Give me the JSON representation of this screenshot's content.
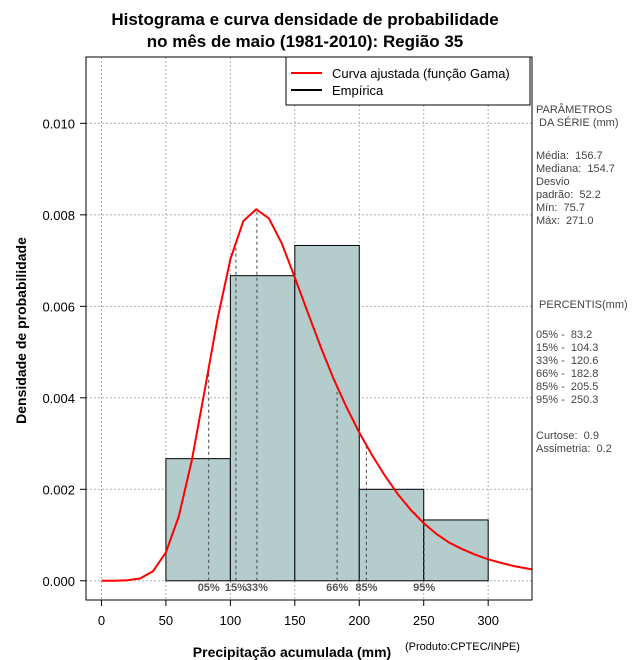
{
  "title_line1": "Histograma e curva densidade de probabilidade",
  "title_line2": "no mês de maio (1981-2010): Região 35",
  "credit": "(Produto:CPTEC/INPE)",
  "colors": {
    "bar_fill": "#b4cccc",
    "curve": "#ff0000",
    "empirical": "#000000",
    "grid": "#b0b0b0"
  },
  "chart_data": {
    "type": "bar",
    "xlabel": "Precipitação acumulada (mm)",
    "ylabel": "Densidade de probabilidade",
    "xlim": [
      -12,
      334
    ],
    "ylim": [
      -0.00042,
      0.01145
    ],
    "x_ticks": [
      0,
      50,
      100,
      150,
      200,
      250,
      300
    ],
    "x_tick_labels": [
      "0",
      "50",
      "100",
      "150",
      "200",
      "250",
      "300"
    ],
    "y_ticks": [
      0.0,
      0.002,
      0.004,
      0.006,
      0.008,
      0.01
    ],
    "y_tick_labels": [
      "0.000",
      "0.002",
      "0.004",
      "0.006",
      "0.008",
      "0.010"
    ],
    "bins": [
      {
        "from": 50,
        "to": 100,
        "density": 0.00267
      },
      {
        "from": 100,
        "to": 150,
        "density": 0.00667
      },
      {
        "from": 150,
        "to": 200,
        "density": 0.00733
      },
      {
        "from": 200,
        "to": 250,
        "density": 0.002
      },
      {
        "from": 250,
        "to": 300,
        "density": 0.00133
      }
    ],
    "fitted_curve": {
      "name": "Curva ajustada (função Gama)",
      "x": [
        0,
        10,
        20,
        30,
        40,
        50,
        60,
        70,
        80,
        90,
        100,
        110,
        120,
        130,
        140,
        150,
        160,
        170,
        180,
        190,
        200,
        210,
        220,
        230,
        240,
        250,
        260,
        270,
        280,
        290,
        300,
        310,
        320,
        334
      ],
      "y": [
        0.0,
        0.0,
        1e-05,
        5e-05,
        0.00021,
        0.00062,
        0.00141,
        0.00262,
        0.00415,
        0.00572,
        0.00703,
        0.00786,
        0.00812,
        0.00792,
        0.00737,
        0.00663,
        0.00587,
        0.00512,
        0.00442,
        0.0038,
        0.00324,
        0.00274,
        0.00229,
        0.00189,
        0.00155,
        0.00126,
        0.00102,
        0.00083,
        0.00069,
        0.00057,
        0.00047,
        0.00039,
        0.00032,
        0.00025
      ]
    },
    "empirical_name": "Empírica",
    "percentile_lines": [
      {
        "label": "05%",
        "x": 83.2
      },
      {
        "label": "15%",
        "x": 104.3
      },
      {
        "label": "33%",
        "x": 120.6
      },
      {
        "label": "66%",
        "x": 182.8
      },
      {
        "label": "85%",
        "x": 205.5
      },
      {
        "label": "95%",
        "x": 250.3
      }
    ]
  },
  "stats_panel": {
    "params_title": "PARÂMETROS\n DA SÉRIE (mm)",
    "params_text": "Média:  156.7\nMediana:  154.7\nDesvio\npadrão:  52.2\nMín:  75.7\nMáx:  271.0",
    "percentis_title": " PERCENTIS(mm)",
    "percentis_text": "05% -  83.2\n15% -  104.3\n33% -  120.6\n66% -  182.8\n85% -  205.5\n95% -  250.3",
    "shape_text": "Curtose:  0.9\nAssimetria:  0.2"
  }
}
